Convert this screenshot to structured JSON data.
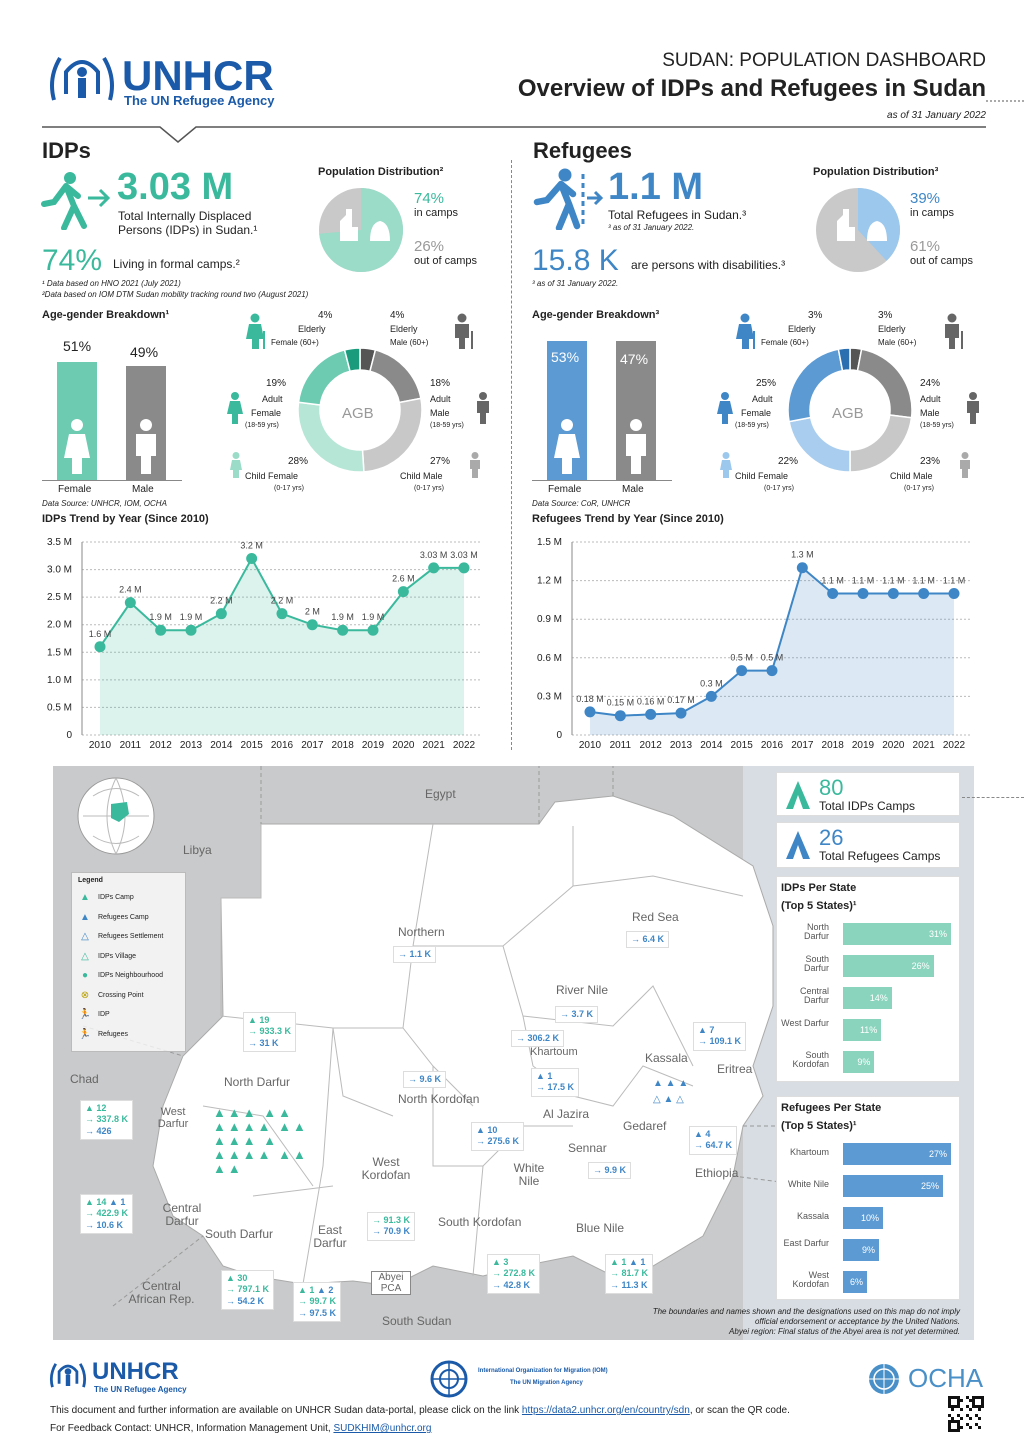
{
  "header": {
    "org": "UNHCR",
    "org_sub": "The UN Refugee Agency",
    "kicker": "SUDAN: POPULATION DASHBOARD",
    "title": "Overview of IDPs and Refugees in Sudan",
    "date": "as of 31 January  2022"
  },
  "idps": {
    "heading": "IDPs",
    "total": "3.03 M",
    "total_label": "Total Internally Displaced Persons (IDPs) in Sudan.¹",
    "pct": "74%",
    "pct_label": "Living in formal camps.²",
    "fn1": "¹ Data based on HNO 2021 (July 2021)",
    "fn2": "²Data based on IOM DTM Sudan mobility tracking round two (August 2021)",
    "pop_title": "Population Distribution²",
    "in_camps_pct": "74%",
    "in_camps": "in camps",
    "out_pct": "26%",
    "out": "out of camps",
    "age_title": "Age-gender Breakdown¹",
    "female_pct": "51%",
    "male_pct": "49%",
    "female": "Female",
    "male": "Male",
    "source": "Data Source: UNHCR, IOM, OCHA",
    "donut": {
      "center": "AGB",
      "ef": "4%",
      "ef_l1": "Elderly",
      "ef_l2": "Female (60+)",
      "em": "4%",
      "em_l1": "Elderly",
      "em_l2": "Male (60+)",
      "af": "19%",
      "af_l1": "Adult",
      "af_l2": "Female",
      "af_l3": "(18-59 yrs)",
      "am": "18%",
      "am_l1": "Adult",
      "am_l2": "Male",
      "am_l3": "(18-59 yrs)",
      "cf": "28%",
      "cf_l1": "Child Female",
      "cf_l2": "(0-17 yrs)",
      "cm": "27%",
      "cm_l1": "Child Male",
      "cm_l2": "(0-17 yrs)"
    },
    "trend_title": "IDPs Trend by Year (Since 2010)"
  },
  "refugees": {
    "heading": "Refugees",
    "total": "1.1 M",
    "total_label": "Total Refugees in Sudan.³",
    "total_fn": "³ as of 31 January 2022.",
    "dis": "15.8 K",
    "dis_label": "are persons with disabilities.³",
    "dis_fn": "³ as of 31 January 2022.",
    "pop_title": "Population Distribution³",
    "in_camps_pct": "39%",
    "in_camps": "in camps",
    "out_pct": "61%",
    "out": "out of camps",
    "age_title": "Age-gender Breakdown³",
    "female_pct": "53%",
    "male_pct": "47%",
    "female": "Female",
    "male": "Male",
    "source": "Data Source: CoR, UNHCR",
    "donut": {
      "center": "AGB",
      "ef": "3%",
      "ef_l1": "Elderly",
      "ef_l2": "Female (60+)",
      "em": "3%",
      "em_l1": "Elderly",
      "em_l2": "Male (60+)",
      "af": "25%",
      "af_l1": "Adult",
      "af_l2": "Female",
      "af_l3": "(18-59 yrs)",
      "am": "24%",
      "am_l1": "Adult",
      "am_l2": "Male",
      "am_l3": "(18-59 yrs)",
      "cf": "22%",
      "cf_l1": "Child Female",
      "cf_l2": "(0-17 yrs)",
      "cm": "23%",
      "cm_l1": "Child Male",
      "cm_l2": "(0-17 yrs)"
    },
    "trend_title": "Refugees Trend by Year (Since 2010)"
  },
  "chart_data": [
    {
      "type": "area",
      "x": [
        "2010",
        "2011",
        "2012",
        "2013",
        "2014",
        "2015",
        "2016",
        "2017",
        "2018",
        "2019",
        "2020",
        "2021",
        "2022"
      ],
      "values": [
        1.6,
        2.4,
        1.9,
        1.9,
        2.2,
        3.2,
        2.2,
        2.0,
        1.9,
        1.9,
        2.6,
        3.03,
        3.03
      ],
      "labels": [
        "1.6 M",
        "2.4 M",
        "1.9 M",
        "1.9 M",
        "2.2 M",
        "3.2 M",
        "2.2 M",
        "2 M",
        "1.9 M",
        "1.9 M",
        "2.6 M",
        "3.03 M",
        "3.03 M"
      ],
      "yticks": [
        "0",
        "0.5 M",
        "1.0 M",
        "1.5 M",
        "2.0 M",
        "2.5 M",
        "3.0 M",
        "3.5 M"
      ],
      "ylim": [
        0,
        3.5
      ],
      "color": "#3ab99c"
    },
    {
      "type": "area",
      "x": [
        "2010",
        "2011",
        "2012",
        "2013",
        "2014",
        "2015",
        "2016",
        "2017",
        "2018",
        "2019",
        "2020",
        "2021",
        "2022"
      ],
      "values": [
        0.18,
        0.15,
        0.16,
        0.17,
        0.3,
        0.5,
        0.5,
        1.3,
        1.1,
        1.1,
        1.1,
        1.1,
        1.1
      ],
      "labels": [
        "0.18 M",
        "0.15 M",
        "0.16 M",
        "0.17 M",
        "0.3 M",
        "0.5 M",
        "0.5 M",
        "1.3 M",
        "1.1 M",
        "1.1 M",
        "1.1 M",
        "1.1 M",
        "1.1 M"
      ],
      "yticks": [
        "0",
        "0.3 M",
        "0.6 M",
        "0.9 M",
        "1.2 M",
        "1.5 M"
      ],
      "ylim": [
        0,
        1.5
      ],
      "color": "#3e86c6"
    }
  ],
  "map": {
    "countries": [
      "Egypt",
      "Libya",
      "Chad",
      "Eritrea",
      "Ethiopia",
      "Central African Rep.",
      "South Sudan"
    ],
    "states": [
      "Northern",
      "Red Sea",
      "River Nile",
      "Khartoum",
      "Kassala",
      "North Darfur",
      "North Kordofan",
      "West Darfur",
      "Al Jazira",
      "Gedaref",
      "Sennar",
      "White Nile",
      "West Kordofan",
      "South Kordofan",
      "Blue Nile",
      "Central Darfur",
      "South Darfur",
      "East Darfur",
      "Abyei PCA"
    ],
    "legend_title": "Legend",
    "legend": [
      "IDPs Camp",
      "Refugees Camp",
      "Refugees Settlement",
      "IDPs Village",
      "IDPs Neighbourhood",
      "Crossing Point",
      "IDP",
      "Refugees"
    ],
    "idp_camps": "80",
    "idp_camps_label": "Total IDPs Camps",
    "ref_camps": "26",
    "ref_camps_label": "Total Refugees Camps",
    "boxes": {
      "northern": "1.1 K",
      "redsea": "6.4 K",
      "rivernile": "3.7 K",
      "khartoum": "306.2 K",
      "kassala_a": "7",
      "kassala_b": "109.1 K",
      "nkordofan": "9.6 K",
      "aljazira_a": "1",
      "aljazira_b": "17.5 K",
      "gedaref_a": "4",
      "gedaref_b": "64.7 K",
      "sennar": "9.9 K",
      "whitenile_a": "10",
      "whitenile_b": "275.6 K",
      "nd_a": "19",
      "nd_b": "933.3 K",
      "nd_c": "31 K",
      "wd_a": "12",
      "wd_b": "337.8 K",
      "wd_c": "426",
      "cd_a": "14",
      "cd_a2": "1",
      "cd_b": "422.9 K",
      "cd_c": "10.6 K",
      "wk_b": "91.3 K",
      "wk_c": "70.9 K",
      "sd_a": "30",
      "sd_b": "797.1 K",
      "sd_c": "54.2 K",
      "ed_a": "1",
      "ed_a2": "2",
      "ed_b": "99.7 K",
      "ed_c": "97.5 K",
      "sk_a": "3",
      "sk_b": "272.8 K",
      "sk_c": "42.8 K",
      "bn_a": "1",
      "bn_a2": "1",
      "bn_b": "81.7 K",
      "bn_c": "11.3 K"
    },
    "disclaimer1": "The boundaries and names shown and the designations used on this map do not imply",
    "disclaimer2": "official endorsement or acceptance by the United Nations.",
    "disclaimer3": "Abyei region: Final status of the Abyei area is not yet determined.",
    "idp_state_title": "IDPs Per State",
    "ref_state_title": "Refugees Per State",
    "top5": "(Top 5 States)¹",
    "idp_states": [
      {
        "name": "North Darfur",
        "pct": "31%",
        "v": 31
      },
      {
        "name": "South Darfur",
        "pct": "26%",
        "v": 26
      },
      {
        "name": "Central Darfur",
        "pct": "14%",
        "v": 14
      },
      {
        "name": "West Darfur",
        "pct": "11%",
        "v": 11
      },
      {
        "name": "South Kordofan",
        "pct": "9%",
        "v": 9
      }
    ],
    "ref_states": [
      {
        "name": "Khartoum",
        "pct": "27%",
        "v": 27
      },
      {
        "name": "White Nile",
        "pct": "25%",
        "v": 25
      },
      {
        "name": "Kassala",
        "pct": "10%",
        "v": 10
      },
      {
        "name": "East Darfur",
        "pct": "9%",
        "v": 9
      },
      {
        "name": "West Kordofan",
        "pct": "6%",
        "v": 6
      }
    ]
  },
  "footer": {
    "org": "UNHCR",
    "org_sub": "The UN Refugee Agency",
    "iom": "International Organization for Migration (IOM)",
    "iom_sub": "The UN Migration Agency",
    "ocha": "OCHA",
    "line1": "This document and further information are available on UNHCR Sudan data-portal, please click on the link ",
    "link": "https://data2.unhcr.org/en/country/sdn",
    "line1b": ", or scan the QR code.",
    "line2": "For Feedback Contact: UNHCR, Information Management Unit, ",
    "email": "SUDKHIM@unhcr.org"
  }
}
